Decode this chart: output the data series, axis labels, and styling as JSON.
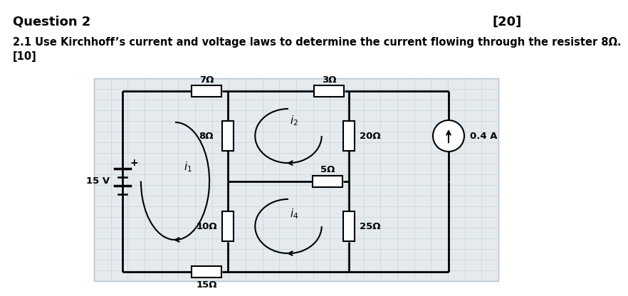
{
  "title": "Question 2",
  "title_mark": "[20]",
  "subtitle": "2.1 Use Kirchhoff’s current and voltage laws to determine the current flowing through the resister 8Ω.",
  "subtitle_mark": "[10]",
  "background_color": "#ffffff",
  "grid_color": "#c8d4dc",
  "circuit_bg": "#e4eaee",
  "line_color": "#000000",
  "font_size_title": 13,
  "font_size_sub": 10.5,
  "font_size_circuit": 9.5
}
